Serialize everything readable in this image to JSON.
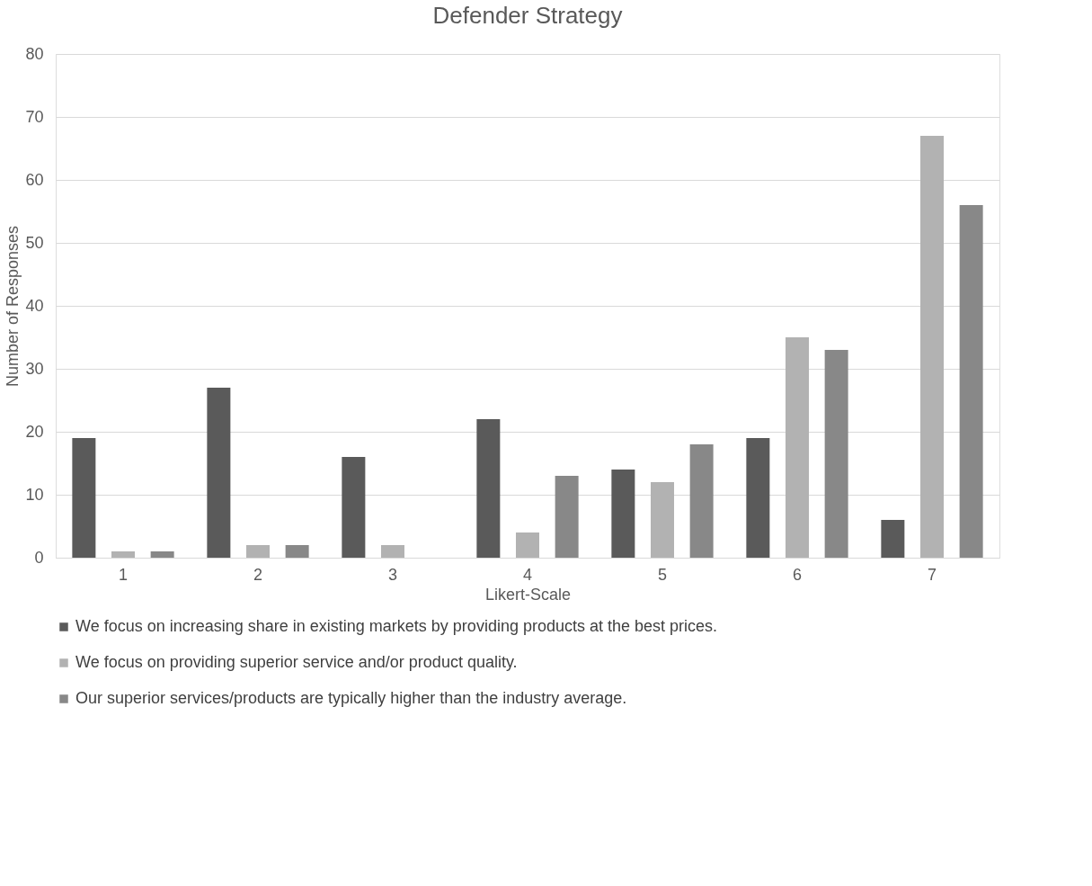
{
  "chart_data": {
    "type": "bar",
    "title": "Defender Strategy",
    "xlabel": "Likert-Scale",
    "ylabel": "Number of Responses",
    "categories": [
      "1",
      "2",
      "3",
      "4",
      "5",
      "6",
      "7"
    ],
    "series": [
      {
        "name": "We focus on increasing share in existing markets by providing products at the best prices.",
        "color": "#5a5a5a",
        "values": [
          19,
          27,
          16,
          22,
          14,
          19,
          6
        ]
      },
      {
        "name": "We focus on providing superior service and/or product quality.",
        "color": "#b2b2b2",
        "values": [
          1,
          2,
          2,
          4,
          12,
          35,
          67
        ]
      },
      {
        "name": "Our superior services/products are typically higher than the industry average.",
        "color": "#888888",
        "values": [
          1,
          2,
          0,
          13,
          18,
          33,
          56
        ]
      }
    ],
    "ylim": [
      0,
      80
    ],
    "yticks": [
      0,
      10,
      20,
      30,
      40,
      50,
      60,
      70,
      80
    ],
    "grid": "y",
    "legend": "bottom"
  }
}
